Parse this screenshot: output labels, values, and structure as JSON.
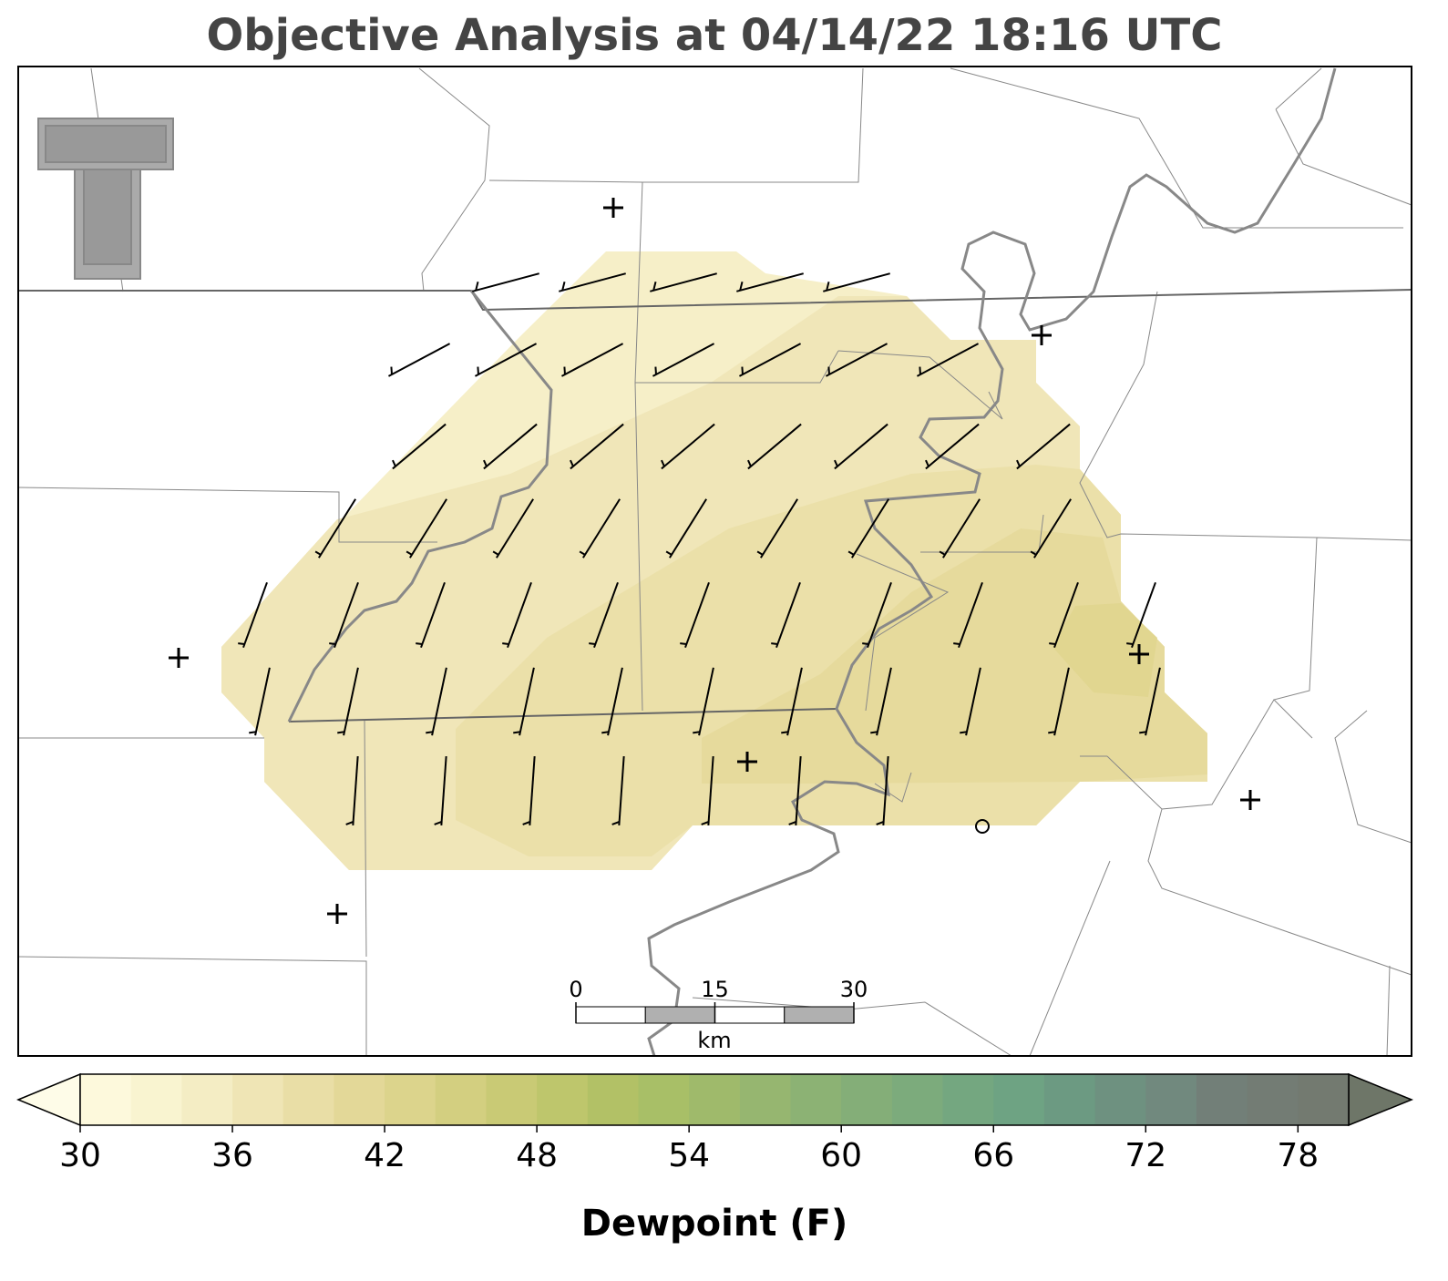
{
  "title": "Objective Analysis at 04/14/22 18:16 UTC",
  "scale_bar": {
    "ticks": [
      0,
      15,
      30
    ],
    "unit": "km"
  },
  "colorbar": {
    "label": "Dewpoint (F)",
    "bounds": [
      30,
      32,
      34,
      36,
      38,
      40,
      42,
      44,
      46,
      48,
      50,
      52,
      54,
      56,
      58,
      60,
      62,
      64,
      66,
      68,
      70,
      72,
      74,
      76,
      78,
      80
    ],
    "colors": [
      "#fdf9dc",
      "#f9f4d0",
      "#f4edc4",
      "#efe5b5",
      "#e9dea6",
      "#e3d898",
      "#dcd48c",
      "#d3cf80",
      "#c9ca75",
      "#bec66c",
      "#b2c166",
      "#a8bf67",
      "#9fba6b",
      "#96b670",
      "#8cb274",
      "#84ae78",
      "#7cab7c",
      "#74a780",
      "#6ea383",
      "#6c9a82",
      "#6e9180",
      "#71897e",
      "#727f78",
      "#737c74",
      "#737a70"
    ],
    "under": "#fefce8",
    "over": "#6e7668",
    "lim": [
      30,
      80
    ],
    "ticks": [
      30,
      36,
      42,
      48,
      54,
      60,
      66,
      72,
      78
    ]
  }
}
